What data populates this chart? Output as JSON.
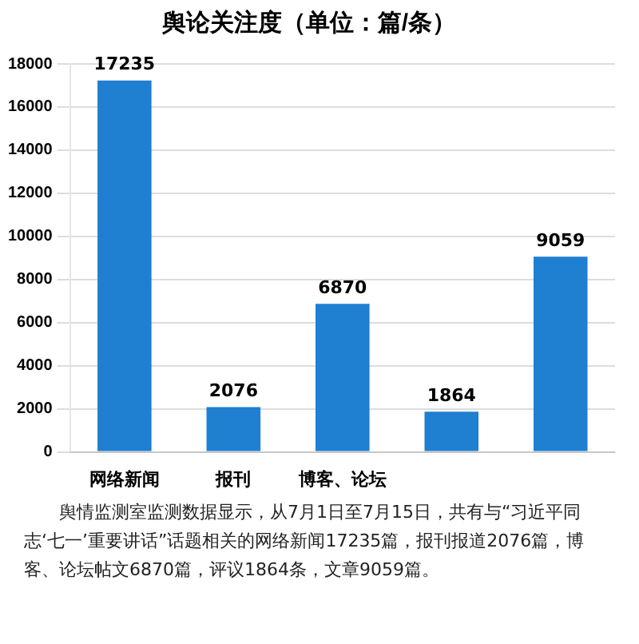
{
  "chart_data": {
    "type": "bar",
    "title": "舆论关注度（单位：篇/条）",
    "categories": [
      "网络新闻",
      "报刊",
      "博客、论坛",
      null,
      null
    ],
    "values": [
      17235,
      2076,
      6870,
      1864,
      9059
    ],
    "color": "#1f7fd0",
    "ylim": [
      0,
      18000
    ],
    "yticks": [
      0,
      2000,
      4000,
      6000,
      8000,
      10000,
      12000,
      14000,
      16000,
      18000
    ],
    "grid": "y",
    "legend": false,
    "data_labels": true,
    "annotations": [
      "舆情监测室监测数据显示，从7月1日至7月15日，共有与“习近平同志‘七一’重要讲话”话题相关的网络新闻17235篇，报刊报道2076篇，博客、论坛帖文6870篇，评议1864条，文章9059篇。"
    ]
  }
}
